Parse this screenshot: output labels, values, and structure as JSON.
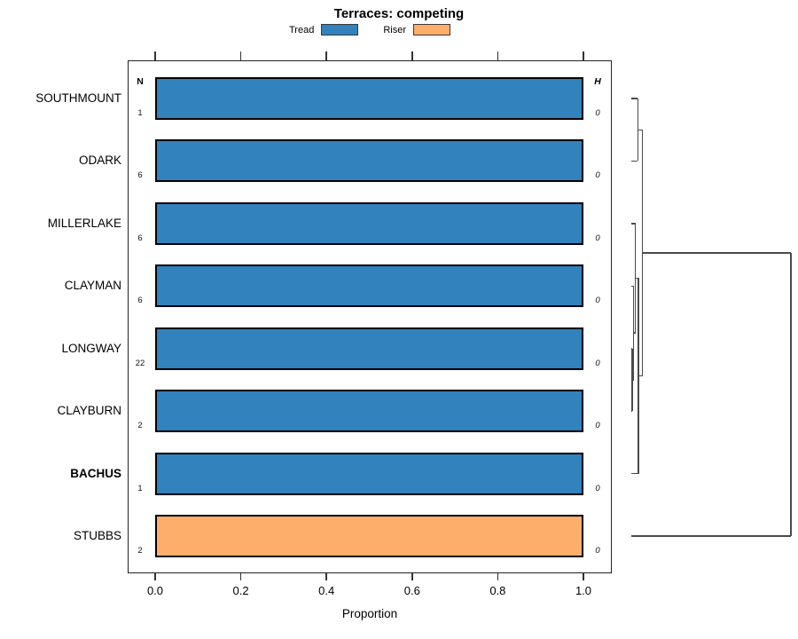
{
  "title": "Terraces: competing",
  "legend": {
    "items": [
      {
        "label": "Tread",
        "color": "#3182bd"
      },
      {
        "label": "Riser",
        "color": "#fdae6b"
      }
    ]
  },
  "columns": {
    "n_header": "N",
    "h_header": "H"
  },
  "xlabel": "Proportion",
  "colors": {
    "tread": "#3182bd",
    "riser": "#fdae6b",
    "bar_border": "#000000",
    "axis": "#333333",
    "dendrogram_line": "#4a4a4a",
    "panel_border": "#222222"
  },
  "chart_data": {
    "type": "bar",
    "orientation": "horizontal",
    "title": "Terraces: competing",
    "xlabel": "Proportion",
    "xlim": [
      0,
      1
    ],
    "x_ticks": [
      {
        "value": 0.0,
        "label": "0.0"
      },
      {
        "value": 0.2,
        "label": "0.2"
      },
      {
        "value": 0.4,
        "label": "0.4"
      },
      {
        "value": 0.6,
        "label": "0.6"
      },
      {
        "value": 0.8,
        "label": "0.8"
      },
      {
        "value": 1.0,
        "label": "1.0"
      }
    ],
    "categories": [
      "SOUTHMOUNT",
      "ODARK",
      "MILLERLAKE",
      "CLAYMAN",
      "LONGWAY",
      "CLAYBURN",
      "BACHUS",
      "STUBBS"
    ],
    "rows": [
      {
        "category": "SOUTHMOUNT",
        "series": "Tread",
        "proportion": 1.0,
        "n": "1",
        "h": "0",
        "bold": false
      },
      {
        "category": "ODARK",
        "series": "Tread",
        "proportion": 1.0,
        "n": "6",
        "h": "0",
        "bold": false
      },
      {
        "category": "MILLERLAKE",
        "series": "Tread",
        "proportion": 1.0,
        "n": "6",
        "h": "0",
        "bold": false
      },
      {
        "category": "CLAYMAN",
        "series": "Tread",
        "proportion": 1.0,
        "n": "6",
        "h": "0",
        "bold": false
      },
      {
        "category": "LONGWAY",
        "series": "Tread",
        "proportion": 1.0,
        "n": "22",
        "h": "0",
        "bold": false
      },
      {
        "category": "CLAYBURN",
        "series": "Tread",
        "proportion": 1.0,
        "n": "2",
        "h": "0",
        "bold": false
      },
      {
        "category": "BACHUS",
        "series": "Tread",
        "proportion": 1.0,
        "n": "1",
        "h": "0",
        "bold": true
      },
      {
        "category": "STUBBS",
        "series": "Riser",
        "proportion": 1.0,
        "n": "2",
        "h": "0",
        "bold": false
      }
    ],
    "series": [
      {
        "name": "Tread",
        "color": "#3182bd"
      },
      {
        "name": "Riser",
        "color": "#fdae6b"
      }
    ],
    "dendrogram": {
      "height_range": [
        0,
        1
      ],
      "tree": {
        "h": 1.0,
        "children": [
          {
            "h": 0.072,
            "children": [
              {
                "h": 0.044,
                "children": [
                  {
                    "leaf": "SOUTHMOUNT"
                  },
                  {
                    "leaf": "ODARK"
                  }
                ]
              },
              {
                "h": 0.047,
                "children": [
                  {
                    "h": 0.028,
                    "children": [
                      {
                        "leaf": "MILLERLAKE"
                      },
                      {
                        "h": 0.017,
                        "children": [
                          {
                            "leaf": "CLAYMAN"
                          },
                          {
                            "h": 0.008,
                            "children": [
                              {
                                "leaf": "LONGWAY"
                              },
                              {
                                "leaf": "CLAYBURN"
                              }
                            ]
                          }
                        ]
                      }
                    ]
                  },
                  {
                    "leaf": "BACHUS"
                  }
                ]
              }
            ]
          },
          {
            "leaf": "STUBBS"
          }
        ]
      }
    }
  }
}
